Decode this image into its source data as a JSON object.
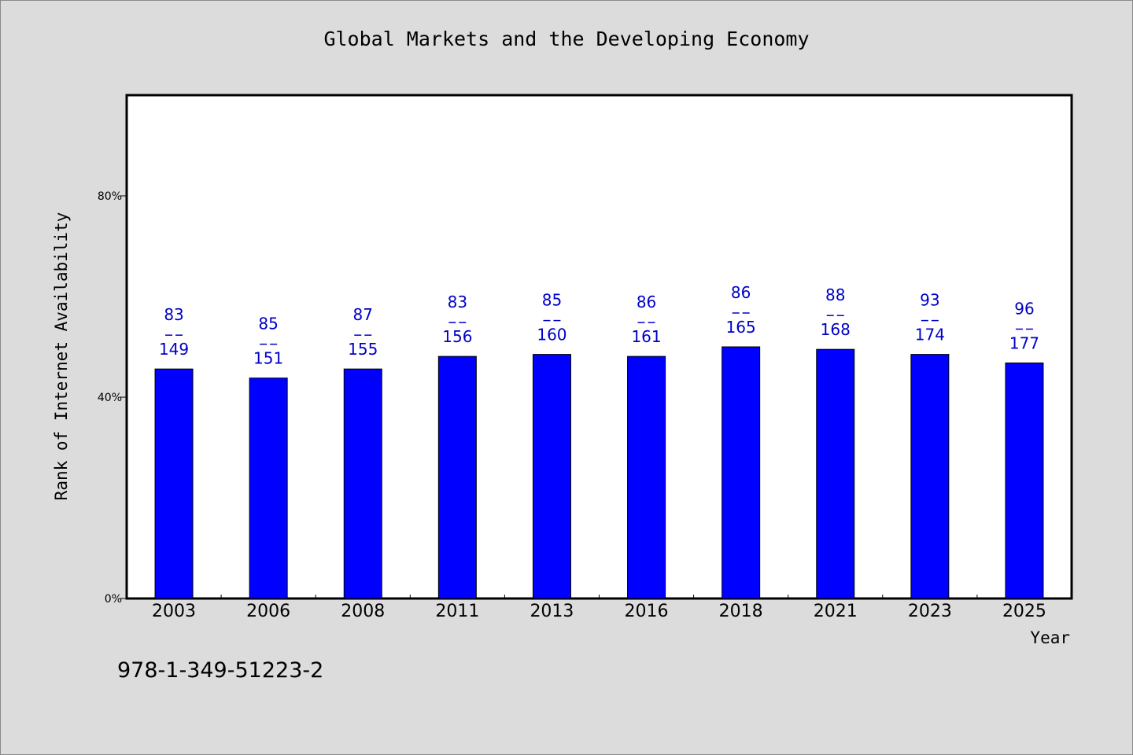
{
  "chart_data": {
    "type": "bar",
    "title": "Global Markets and the Developing Economy",
    "xlabel": "Year",
    "ylabel": "Rank of Internet Availability",
    "ylim": [
      0,
      100
    ],
    "yticks": [
      0,
      40,
      80
    ],
    "ytick_labels": [
      "0%",
      "40%",
      "80%"
    ],
    "grid": false,
    "legend": "none",
    "bar_color": "#0000ff",
    "label_color": "#0000c8",
    "categories": [
      "2003",
      "2006",
      "2008",
      "2011",
      "2013",
      "2016",
      "2018",
      "2021",
      "2023",
      "2025"
    ],
    "values": [
      45.6,
      43.8,
      45.6,
      48.1,
      48.5,
      48.1,
      50.0,
      49.5,
      48.5,
      46.8
    ],
    "annotations": [
      {
        "top": "83",
        "bottom": "149"
      },
      {
        "top": "85",
        "bottom": "151"
      },
      {
        "top": "87",
        "bottom": "155"
      },
      {
        "top": "83",
        "bottom": "156"
      },
      {
        "top": "85",
        "bottom": "160"
      },
      {
        "top": "86",
        "bottom": "161"
      },
      {
        "top": "86",
        "bottom": "165"
      },
      {
        "top": "88",
        "bottom": "168"
      },
      {
        "top": "93",
        "bottom": "174"
      },
      {
        "top": "96",
        "bottom": "177"
      }
    ]
  },
  "footer": {
    "isbn": "978-1-349-51223-2"
  }
}
